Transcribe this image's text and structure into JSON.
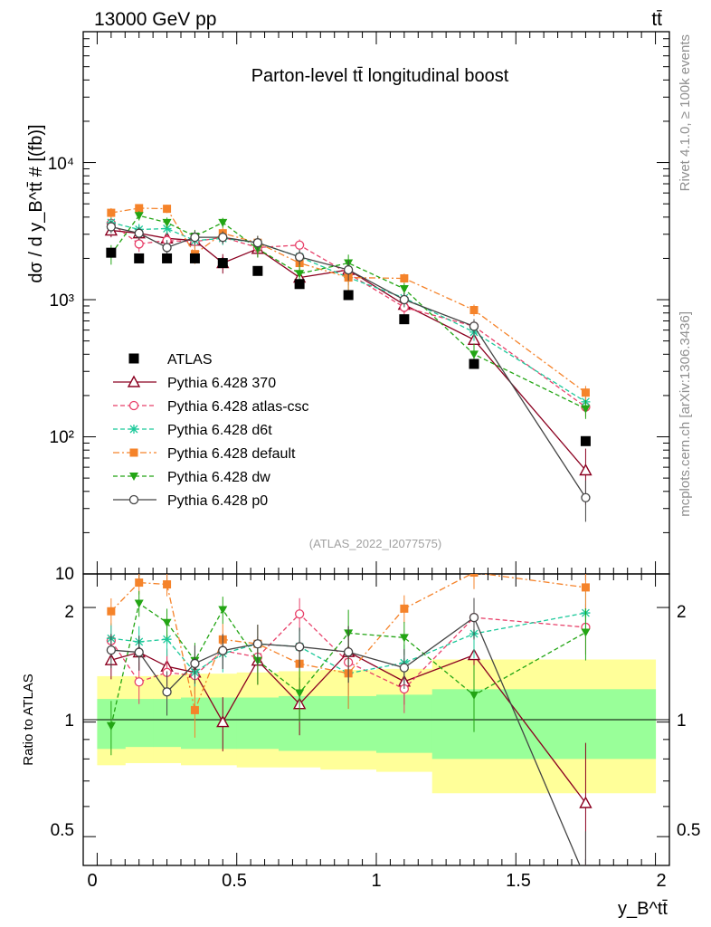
{
  "header": {
    "energy_label": "13000 GeV pp",
    "process_label": "tt̄",
    "title": "Parton-level tt̄ longitudinal boost",
    "watermark": "(ATLAS_2022_I2077575)",
    "rivet_label": "Rivet 4.1.0, ≥ 100k events",
    "mcplots_label": "mcplots.cern.ch [arXiv:1306.3436]"
  },
  "axes": {
    "ylabel_main": "dσ / d y_B^tt̄ # [(fb)]",
    "ylabel_ratio": "Ratio to ATLAS",
    "xlabel": "y_B^tt̄",
    "x_ticks": [
      "0",
      "0.5",
      "1",
      "1.5",
      "2"
    ],
    "y_ticks_main": [
      "10",
      "10²",
      "10³",
      "10⁴"
    ],
    "y_ticks_ratio": [
      "0.5",
      "1",
      "2"
    ]
  },
  "chart_data": {
    "type": "line",
    "title": "Parton-level tt̄ longitudinal boost",
    "xlabel": "y_B^tt̄",
    "ylabel": "dσ / d y_B^tt̄ [fb]",
    "xlim": [
      -0.05,
      2.05
    ],
    "ylim": [
      10,
      90000
    ],
    "yscale": "log",
    "ratio_ylim": [
      0.42,
      2.45
    ],
    "x": [
      0.05,
      0.15,
      0.25,
      0.35,
      0.45,
      0.575,
      0.725,
      0.9,
      1.1,
      1.35,
      1.75
    ],
    "x_edges": [
      0,
      0.1,
      0.2,
      0.3,
      0.4,
      0.5,
      0.65,
      0.8,
      1.0,
      1.2,
      1.5,
      2.0
    ],
    "data": {
      "name": "ATLAS",
      "values": [
        2200,
        2000,
        2000,
        2000,
        1850,
        1620,
        1300,
        1080,
        720,
        340,
        93
      ],
      "band_inner": [
        [
          0.85,
          1.15
        ],
        [
          0.86,
          1.15
        ],
        [
          0.86,
          1.15
        ],
        [
          0.85,
          1.16
        ],
        [
          0.85,
          1.16
        ],
        [
          0.85,
          1.16
        ],
        [
          0.84,
          1.17
        ],
        [
          0.84,
          1.17
        ],
        [
          0.83,
          1.18
        ],
        [
          0.8,
          1.22
        ],
        [
          0.8,
          1.22
        ]
      ],
      "band_outer": [
        [
          0.77,
          1.32
        ],
        [
          0.78,
          1.32
        ],
        [
          0.78,
          1.33
        ],
        [
          0.77,
          1.34
        ],
        [
          0.77,
          1.34
        ],
        [
          0.76,
          1.35
        ],
        [
          0.76,
          1.36
        ],
        [
          0.75,
          1.37
        ],
        [
          0.74,
          1.38
        ],
        [
          0.65,
          1.46
        ],
        [
          0.65,
          1.46
        ]
      ]
    },
    "series": [
      {
        "name": "Pythia 6.428 370",
        "color": "#8b0020",
        "dash": "",
        "marker": "triangle-open",
        "values": [
          3200,
          3050,
          2800,
          2700,
          1850,
          2350,
          1450,
          1650,
          920,
          510,
          57
        ],
        "err": [
          350,
          320,
          320,
          330,
          300,
          320,
          250,
          280,
          120,
          80,
          25
        ]
      },
      {
        "name": "Pythia 6.428 atlas-csc",
        "color": "#e8416a",
        "dash": "5,3",
        "marker": "circle-open",
        "values": [
          3600,
          2550,
          2700,
          2650,
          2850,
          2400,
          2500,
          1550,
          880,
          640,
          165
        ],
        "err": [
          350,
          320,
          320,
          330,
          300,
          320,
          250,
          280,
          120,
          80,
          25
        ]
      },
      {
        "name": "Pythia 6.428 d6t",
        "color": "#1cc99a",
        "dash": "5,3",
        "marker": "star",
        "values": [
          3650,
          3250,
          3300,
          2700,
          2800,
          2600,
          2050,
          1450,
          1030,
          580,
          180
        ],
        "err": [
          350,
          320,
          320,
          330,
          300,
          320,
          250,
          280,
          120,
          80,
          25
        ]
      },
      {
        "name": "Pythia 6.428 default",
        "color": "#f5832a",
        "dash": "7,3,2,3",
        "marker": "square",
        "values": [
          4300,
          4650,
          4600,
          2150,
          3050,
          2600,
          1850,
          1450,
          1430,
          840,
          210
        ],
        "err": [
          350,
          320,
          320,
          330,
          300,
          320,
          250,
          280,
          120,
          80,
          25
        ]
      },
      {
        "name": "Pythia 6.428 dw",
        "color": "#23a514",
        "dash": "5,3",
        "marker": "triangle-down",
        "values": [
          2150,
          4100,
          3650,
          2900,
          3650,
          2350,
          1550,
          1850,
          1200,
          400,
          160
        ],
        "err": [
          350,
          320,
          320,
          330,
          300,
          320,
          250,
          280,
          120,
          80,
          25
        ]
      },
      {
        "name": "Pythia 6.428 p0",
        "color": "#444444",
        "dash": "",
        "marker": "circle-open",
        "values": [
          3400,
          3050,
          2400,
          2850,
          2850,
          2600,
          2050,
          1650,
          1000,
          640,
          36
        ],
        "err": [
          350,
          320,
          320,
          330,
          300,
          320,
          250,
          280,
          120,
          80,
          12
        ]
      }
    ]
  }
}
